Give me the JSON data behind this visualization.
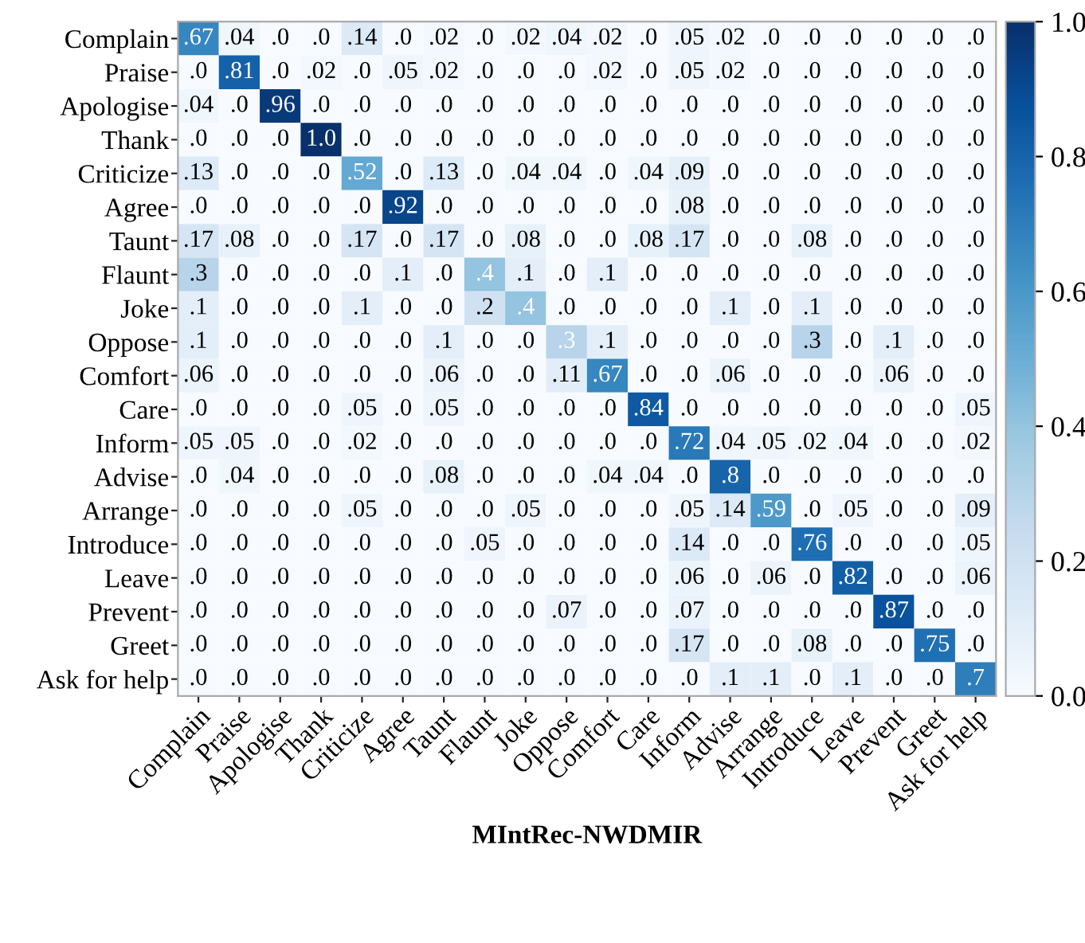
{
  "chart_data": {
    "type": "heatmap",
    "xlabel": "MIntRec-NWDMIR",
    "categories": [
      "Complain",
      "Praise",
      "Apologise",
      "Thank",
      "Criticize",
      "Agree",
      "Taunt",
      "Flaunt",
      "Joke",
      "Oppose",
      "Comfort",
      "Care",
      "Inform",
      "Advise",
      "Arrange",
      "Introduce",
      "Leave",
      "Prevent",
      "Greet",
      "Ask for help"
    ],
    "y_categories": [
      "Complain",
      "Praise",
      "Apologise",
      "Thank",
      "Criticize",
      "Agree",
      "Taunt",
      "Flaunt",
      "Joke",
      "Oppose",
      "Comfort",
      "Care",
      "Inform",
      "Advise",
      "Arrange",
      "Introduce",
      "Leave",
      "Prevent",
      "Greet",
      "Ask for help"
    ],
    "cells": [
      [
        0.67,
        0.04,
        0,
        0,
        0.14,
        0,
        0.02,
        0,
        0.02,
        0.04,
        0.02,
        0,
        0.05,
        0.02,
        0,
        0,
        0,
        0,
        0,
        0
      ],
      [
        0,
        0.81,
        0,
        0.02,
        0,
        0.05,
        0.02,
        0,
        0,
        0,
        0.02,
        0,
        0.05,
        0.02,
        0,
        0,
        0,
        0,
        0,
        0
      ],
      [
        0.04,
        0,
        0.96,
        0,
        0,
        0,
        0,
        0,
        0,
        0,
        0,
        0,
        0,
        0,
        0,
        0,
        0,
        0,
        0,
        0
      ],
      [
        0,
        0,
        0,
        1.0,
        0,
        0,
        0,
        0,
        0,
        0,
        0,
        0,
        0,
        0,
        0,
        0,
        0,
        0,
        0,
        0
      ],
      [
        0.13,
        0,
        0,
        0,
        0.52,
        0,
        0.13,
        0,
        0.04,
        0.04,
        0,
        0.04,
        0.09,
        0,
        0,
        0,
        0,
        0,
        0,
        0
      ],
      [
        0,
        0,
        0,
        0,
        0,
        0.92,
        0,
        0,
        0,
        0,
        0,
        0,
        0.08,
        0,
        0,
        0,
        0,
        0,
        0,
        0
      ],
      [
        0.17,
        0.08,
        0,
        0,
        0.17,
        0,
        0.17,
        0,
        0.08,
        0,
        0,
        0.08,
        0.17,
        0,
        0,
        0.08,
        0,
        0,
        0,
        0
      ],
      [
        0.3,
        0,
        0,
        0,
        0,
        0.1,
        0,
        0.4,
        0.1,
        0,
        0.1,
        0,
        0,
        0,
        0,
        0,
        0,
        0,
        0,
        0
      ],
      [
        0.1,
        0,
        0,
        0,
        0.1,
        0,
        0,
        0.2,
        0.4,
        0,
        0,
        0,
        0,
        0.1,
        0,
        0.1,
        0,
        0,
        0,
        0
      ],
      [
        0.1,
        0,
        0,
        0,
        0,
        0,
        0.1,
        0,
        0,
        0.3,
        0.1,
        0,
        0,
        0,
        0,
        0.3,
        0,
        0.1,
        0,
        0
      ],
      [
        0.06,
        0,
        0,
        0,
        0,
        0,
        0.06,
        0,
        0,
        0.11,
        0.67,
        0,
        0,
        0.06,
        0,
        0,
        0,
        0.06,
        0,
        0
      ],
      [
        0,
        0,
        0,
        0,
        0.05,
        0,
        0.05,
        0,
        0,
        0,
        0,
        0.84,
        0,
        0,
        0,
        0,
        0,
        0,
        0,
        0.05
      ],
      [
        0.05,
        0.05,
        0,
        0,
        0.02,
        0,
        0,
        0,
        0,
        0,
        0,
        0,
        0.72,
        0.04,
        0.05,
        0.02,
        0.04,
        0,
        0,
        0.02
      ],
      [
        0,
        0.04,
        0,
        0,
        0,
        0,
        0.08,
        0,
        0,
        0,
        0.04,
        0.04,
        0,
        0.8,
        0,
        0,
        0,
        0,
        0,
        0
      ],
      [
        0,
        0,
        0,
        0,
        0.05,
        0,
        0,
        0,
        0.05,
        0,
        0,
        0,
        0.05,
        0.14,
        0.59,
        0,
        0.05,
        0,
        0,
        0.09
      ],
      [
        0,
        0,
        0,
        0,
        0,
        0,
        0,
        0.05,
        0,
        0,
        0,
        0,
        0.14,
        0,
        0,
        0.76,
        0,
        0,
        0,
        0.05
      ],
      [
        0,
        0,
        0,
        0,
        0,
        0,
        0,
        0,
        0,
        0,
        0,
        0,
        0.06,
        0,
        0.06,
        0,
        0.82,
        0,
        0,
        0.06
      ],
      [
        0,
        0,
        0,
        0,
        0,
        0,
        0,
        0,
        0,
        0.07,
        0,
        0,
        0.07,
        0,
        0,
        0,
        0,
        0.87,
        0,
        0
      ],
      [
        0,
        0,
        0,
        0,
        0,
        0,
        0,
        0,
        0,
        0,
        0,
        0,
        0.17,
        0,
        0,
        0.08,
        0,
        0,
        0.75,
        0
      ],
      [
        0,
        0,
        0,
        0,
        0,
        0,
        0,
        0,
        0,
        0,
        0,
        0,
        0,
        0.1,
        0.1,
        0,
        0.1,
        0,
        0,
        0.7
      ]
    ],
    "cell_labels": [
      [
        ".67",
        ".04",
        ".0",
        ".0",
        ".14",
        ".0",
        ".02",
        ".0",
        ".02",
        ".04",
        ".02",
        ".0",
        ".05",
        ".02",
        ".0",
        ".0",
        ".0",
        ".0",
        ".0",
        ".0"
      ],
      [
        ".0",
        ".81",
        ".0",
        ".02",
        ".0",
        ".05",
        ".02",
        ".0",
        ".0",
        ".0",
        ".02",
        ".0",
        ".05",
        ".02",
        ".0",
        ".0",
        ".0",
        ".0",
        ".0",
        ".0"
      ],
      [
        ".04",
        ".0",
        ".96",
        ".0",
        ".0",
        ".0",
        ".0",
        ".0",
        ".0",
        ".0",
        ".0",
        ".0",
        ".0",
        ".0",
        ".0",
        ".0",
        ".0",
        ".0",
        ".0",
        ".0"
      ],
      [
        ".0",
        ".0",
        ".0",
        "1.0",
        ".0",
        ".0",
        ".0",
        ".0",
        ".0",
        ".0",
        ".0",
        ".0",
        ".0",
        ".0",
        ".0",
        ".0",
        ".0",
        ".0",
        ".0",
        ".0"
      ],
      [
        ".13",
        ".0",
        ".0",
        ".0",
        ".52",
        ".0",
        ".13",
        ".0",
        ".04",
        ".04",
        ".0",
        ".04",
        ".09",
        ".0",
        ".0",
        ".0",
        ".0",
        ".0",
        ".0",
        ".0"
      ],
      [
        ".0",
        ".0",
        ".0",
        ".0",
        ".0",
        ".92",
        ".0",
        ".0",
        ".0",
        ".0",
        ".0",
        ".0",
        ".08",
        ".0",
        ".0",
        ".0",
        ".0",
        ".0",
        ".0",
        ".0"
      ],
      [
        ".17",
        ".08",
        ".0",
        ".0",
        ".17",
        ".0",
        ".17",
        ".0",
        ".08",
        ".0",
        ".0",
        ".08",
        ".17",
        ".0",
        ".0",
        ".08",
        ".0",
        ".0",
        ".0",
        ".0"
      ],
      [
        ".3",
        ".0",
        ".0",
        ".0",
        ".0",
        ".1",
        ".0",
        ".4",
        ".1",
        ".0",
        ".1",
        ".0",
        ".0",
        ".0",
        ".0",
        ".0",
        ".0",
        ".0",
        ".0",
        ".0"
      ],
      [
        ".1",
        ".0",
        ".0",
        ".0",
        ".1",
        ".0",
        ".0",
        ".2",
        ".4",
        ".0",
        ".0",
        ".0",
        ".0",
        ".1",
        ".0",
        ".1",
        ".0",
        ".0",
        ".0",
        ".0"
      ],
      [
        ".1",
        ".0",
        ".0",
        ".0",
        ".0",
        ".0",
        ".1",
        ".0",
        ".0",
        ".3",
        ".1",
        ".0",
        ".0",
        ".0",
        ".0",
        ".3",
        ".0",
        ".1",
        ".0",
        ".0"
      ],
      [
        ".06",
        ".0",
        ".0",
        ".0",
        ".0",
        ".0",
        ".06",
        ".0",
        ".0",
        ".11",
        ".67",
        ".0",
        ".0",
        ".06",
        ".0",
        ".0",
        ".0",
        ".06",
        ".0",
        ".0"
      ],
      [
        ".0",
        ".0",
        ".0",
        ".0",
        ".05",
        ".0",
        ".05",
        ".0",
        ".0",
        ".0",
        ".0",
        ".84",
        ".0",
        ".0",
        ".0",
        ".0",
        ".0",
        ".0",
        ".0",
        ".05"
      ],
      [
        ".05",
        ".05",
        ".0",
        ".0",
        ".02",
        ".0",
        ".0",
        ".0",
        ".0",
        ".0",
        ".0",
        ".0",
        ".72",
        ".04",
        ".05",
        ".02",
        ".04",
        ".0",
        ".0",
        ".02"
      ],
      [
        ".0",
        ".04",
        ".0",
        ".0",
        ".0",
        ".0",
        ".08",
        ".0",
        ".0",
        ".0",
        ".04",
        ".04",
        ".0",
        ".8",
        ".0",
        ".0",
        ".0",
        ".0",
        ".0",
        ".0"
      ],
      [
        ".0",
        ".0",
        ".0",
        ".0",
        ".05",
        ".0",
        ".0",
        ".0",
        ".05",
        ".0",
        ".0",
        ".0",
        ".05",
        ".14",
        ".59",
        ".0",
        ".05",
        ".0",
        ".0",
        ".09"
      ],
      [
        ".0",
        ".0",
        ".0",
        ".0",
        ".0",
        ".0",
        ".0",
        ".05",
        ".0",
        ".0",
        ".0",
        ".0",
        ".14",
        ".0",
        ".0",
        ".76",
        ".0",
        ".0",
        ".0",
        ".05"
      ],
      [
        ".0",
        ".0",
        ".0",
        ".0",
        ".0",
        ".0",
        ".0",
        ".0",
        ".0",
        ".0",
        ".0",
        ".0",
        ".06",
        ".0",
        ".06",
        ".0",
        ".82",
        ".0",
        ".0",
        ".06"
      ],
      [
        ".0",
        ".0",
        ".0",
        ".0",
        ".0",
        ".0",
        ".0",
        ".0",
        ".0",
        ".07",
        ".0",
        ".0",
        ".07",
        ".0",
        ".0",
        ".0",
        ".0",
        ".87",
        ".0",
        ".0"
      ],
      [
        ".0",
        ".0",
        ".0",
        ".0",
        ".0",
        ".0",
        ".0",
        ".0",
        ".0",
        ".0",
        ".0",
        ".0",
        ".17",
        ".0",
        ".0",
        ".08",
        ".0",
        ".0",
        ".75",
        ".0"
      ],
      [
        ".0",
        ".0",
        ".0",
        ".0",
        ".0",
        ".0",
        ".0",
        ".0",
        ".0",
        ".0",
        ".0",
        ".0",
        ".0",
        ".1",
        ".1",
        ".0",
        ".1",
        ".0",
        ".0",
        ".7"
      ]
    ],
    "clim": [
      0.0,
      1.0
    ],
    "cticks": [
      {
        "value": 0.0,
        "label": "0.0"
      },
      {
        "value": 0.2,
        "label": "0.2"
      },
      {
        "value": 0.4,
        "label": "0.4"
      },
      {
        "value": 0.6,
        "label": "0.6"
      },
      {
        "value": 0.8,
        "label": "0.8"
      },
      {
        "value": 1.0,
        "label": "1.0"
      }
    ]
  }
}
